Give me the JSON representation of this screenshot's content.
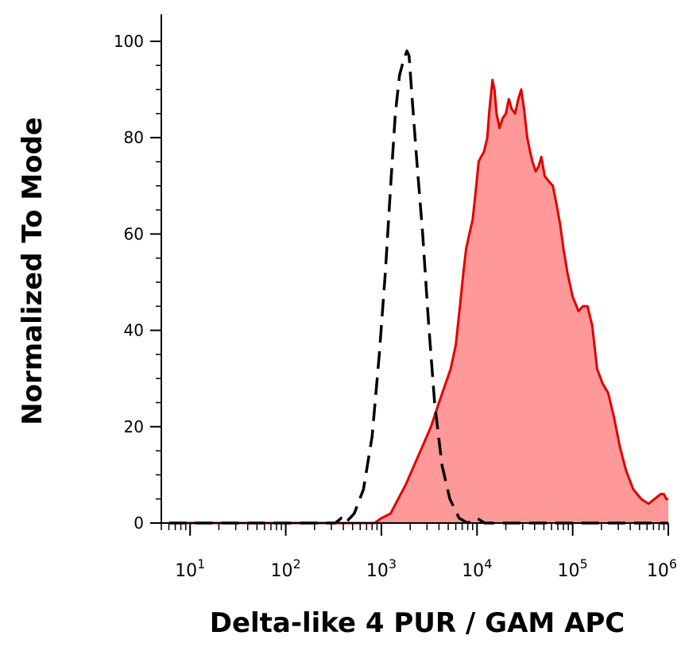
{
  "chart_data": {
    "type": "area",
    "xlabel": "Delta-like 4 PUR / GAM APC",
    "ylabel": "Normalized To Mode",
    "x_scale": "log",
    "xlim": [
      5,
      1000000
    ],
    "ylim": [
      0,
      100
    ],
    "x_ticks": [
      {
        "base": "10",
        "exp": "1",
        "value": 10
      },
      {
        "base": "10",
        "exp": "2",
        "value": 100
      },
      {
        "base": "10",
        "exp": "3",
        "value": 1000
      },
      {
        "base": "10",
        "exp": "4",
        "value": 10000
      },
      {
        "base": "10",
        "exp": "5",
        "value": 100000
      },
      {
        "base": "10",
        "exp": "6",
        "value": 1000000
      }
    ],
    "y_ticks": [
      "0",
      "20",
      "40",
      "60",
      "80",
      "100"
    ],
    "grid": false,
    "series": [
      {
        "style": "dashed",
        "color": "#000000",
        "points": [
          [
            6,
            0
          ],
          [
            200,
            0
          ],
          [
            330,
            0
          ],
          [
            380,
            1
          ],
          [
            420,
            0
          ],
          [
            520,
            2
          ],
          [
            650,
            7
          ],
          [
            800,
            18
          ],
          [
            950,
            35
          ],
          [
            1100,
            52
          ],
          [
            1250,
            70
          ],
          [
            1400,
            85
          ],
          [
            1550,
            93
          ],
          [
            1700,
            96
          ],
          [
            1850,
            98
          ],
          [
            1950,
            97
          ],
          [
            2100,
            88
          ],
          [
            2350,
            75
          ],
          [
            2700,
            60
          ],
          [
            3100,
            42
          ],
          [
            3600,
            25
          ],
          [
            4300,
            12
          ],
          [
            5200,
            5
          ],
          [
            6500,
            1
          ],
          [
            8000,
            0
          ],
          [
            10000,
            1
          ],
          [
            12000,
            0
          ],
          [
            1000000,
            0
          ]
        ]
      },
      {
        "style": "filled",
        "color": "#e00000",
        "fill": "#ff9999",
        "points": [
          [
            6,
            0
          ],
          [
            850,
            0
          ],
          [
            1000,
            1
          ],
          [
            1250,
            2
          ],
          [
            1500,
            5
          ],
          [
            1800,
            8
          ],
          [
            2200,
            12
          ],
          [
            2700,
            16
          ],
          [
            3300,
            20
          ],
          [
            4000,
            25
          ],
          [
            4700,
            29
          ],
          [
            5300,
            32
          ],
          [
            6000,
            37
          ],
          [
            6700,
            46
          ],
          [
            7200,
            52
          ],
          [
            7700,
            57
          ],
          [
            8300,
            60
          ],
          [
            9000,
            63
          ],
          [
            9700,
            69
          ],
          [
            10400,
            75
          ],
          [
            11000,
            76
          ],
          [
            11800,
            77
          ],
          [
            12800,
            80
          ],
          [
            13500,
            86
          ],
          [
            14500,
            92
          ],
          [
            15200,
            90
          ],
          [
            16000,
            85
          ],
          [
            17200,
            82
          ],
          [
            18500,
            84
          ],
          [
            20000,
            85
          ],
          [
            21500,
            88
          ],
          [
            23000,
            86
          ],
          [
            25000,
            85
          ],
          [
            27000,
            88
          ],
          [
            29000,
            90
          ],
          [
            31000,
            86
          ],
          [
            33500,
            80
          ],
          [
            36000,
            77
          ],
          [
            38000,
            75
          ],
          [
            41000,
            73
          ],
          [
            44000,
            74
          ],
          [
            47000,
            76
          ],
          [
            51000,
            72
          ],
          [
            56000,
            71
          ],
          [
            62000,
            70
          ],
          [
            68000,
            66
          ],
          [
            74000,
            62
          ],
          [
            80000,
            57
          ],
          [
            88000,
            52
          ],
          [
            100000,
            47
          ],
          [
            115000,
            44
          ],
          [
            128000,
            45
          ],
          [
            143000,
            45
          ],
          [
            160000,
            41
          ],
          [
            180000,
            32
          ],
          [
            205000,
            29
          ],
          [
            235000,
            27
          ],
          [
            270000,
            22
          ],
          [
            310000,
            16
          ],
          [
            360000,
            11
          ],
          [
            430000,
            7
          ],
          [
            520000,
            5
          ],
          [
            620000,
            4
          ],
          [
            720000,
            5
          ],
          [
            830000,
            6
          ],
          [
            900000,
            6
          ],
          [
            950000,
            5
          ],
          [
            1000000,
            5
          ]
        ]
      }
    ]
  }
}
